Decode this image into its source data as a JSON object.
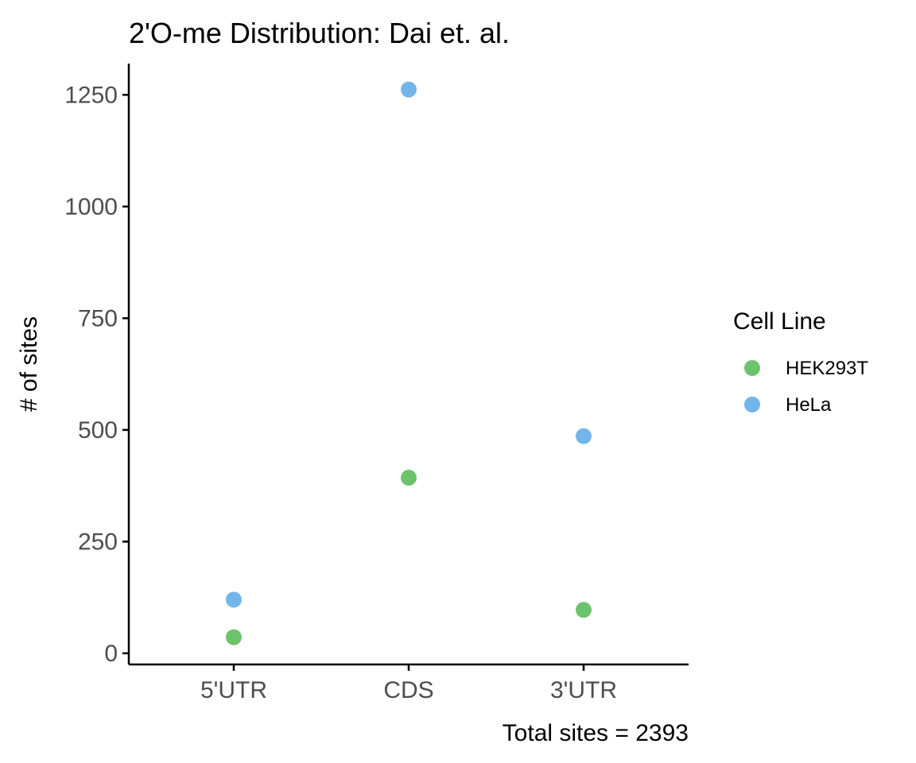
{
  "chart_data": {
    "type": "scatter",
    "title": "2'O-me Distribution: Dai et. al.",
    "xlabel": "",
    "ylabel": "# of sites",
    "caption": "Total sites = 2393",
    "categories": [
      "5'UTR",
      "CDS",
      "3'UTR"
    ],
    "y_ticks": [
      0,
      250,
      500,
      750,
      1000,
      1250
    ],
    "ylim": [
      -25,
      1320
    ],
    "grid": false,
    "legend": {
      "title": "Cell Line",
      "placement": "right"
    },
    "series": [
      {
        "name": "HEK293T",
        "color": "#6cc36b",
        "values": [
          36,
          393,
          97
        ]
      },
      {
        "name": "HeLa",
        "color": "#72b5ea",
        "values": [
          120,
          1262,
          486
        ]
      }
    ]
  }
}
